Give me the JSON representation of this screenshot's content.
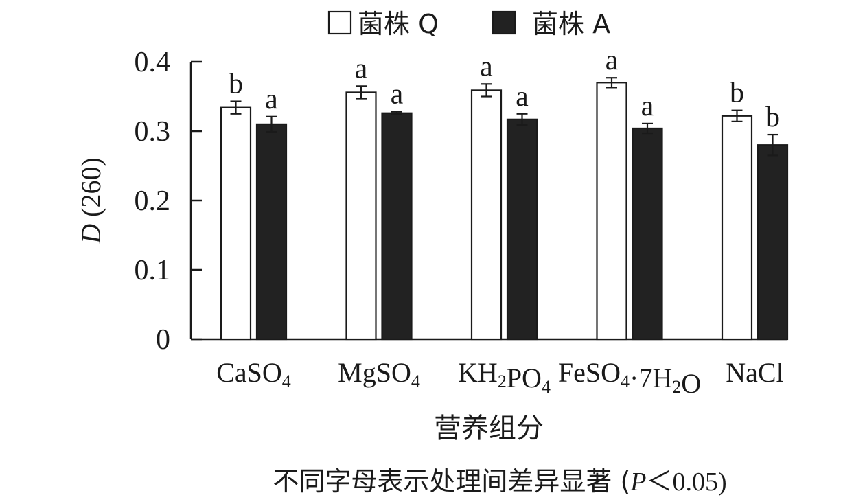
{
  "chart_data": {
    "type": "bar",
    "categories": [
      {
        "base": "CaSO",
        "sub": "4",
        "tail": ""
      },
      {
        "base": "MgSO",
        "sub": "4",
        "tail": ""
      },
      {
        "base": "KH",
        "sub": "2",
        "tail": "PO",
        "sub2": "4"
      },
      {
        "base": "FeSO",
        "sub": "4",
        "tail": "·7H",
        "sub2": "2",
        "tail2": "O"
      },
      {
        "base": "NaCl",
        "sub": "",
        "tail": ""
      }
    ],
    "series": [
      {
        "name": "菌株 Q",
        "color": "#ffffff",
        "values": [
          0.334,
          0.356,
          0.359,
          0.37,
          0.322
        ],
        "errors": [
          0.009,
          0.009,
          0.009,
          0.007,
          0.008
        ],
        "letters": [
          "b",
          "a",
          "a",
          "a",
          "b"
        ]
      },
      {
        "name": "菌株 A",
        "color": "#222222",
        "values": [
          0.31,
          0.326,
          0.317,
          0.304,
          0.28
        ],
        "errors": [
          0.011,
          0.002,
          0.008,
          0.007,
          0.015
        ],
        "letters": [
          "a",
          "a",
          "a",
          "a",
          "b"
        ]
      }
    ],
    "ylim": [
      0,
      0.4
    ],
    "yticks": [
      "0",
      "0.1",
      "0.2",
      "0.3",
      "0.4"
    ],
    "ylabel_italic": "D",
    "ylabel_rest": " (260)",
    "xlabel": "营养组分",
    "note_prefix": "不同字母表示处理间差异显著 (",
    "note_italic": "P",
    "note_suffix": "＜0.05)",
    "legend_position": "top-center",
    "grid": false
  }
}
